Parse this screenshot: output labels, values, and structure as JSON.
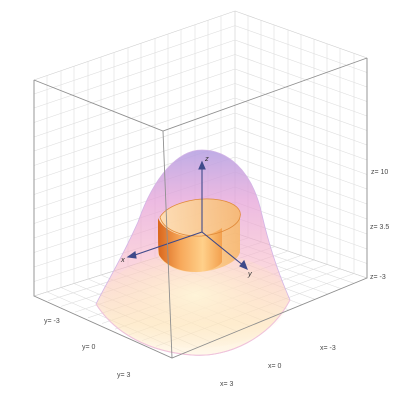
{
  "labels": {
    "z_ticks": [
      "z= 10",
      "z= 3.5",
      "z= -3"
    ],
    "x_ticks": [
      "x= -3",
      "x= 0",
      "x= 3"
    ],
    "y_ticks": [
      "y= -3",
      "y= 0",
      "y= 3"
    ],
    "axes": {
      "x": "x",
      "y": "y",
      "z": "z"
    }
  },
  "colors": {
    "box_edge": "#8a8a8a",
    "grid": "#d9d9d9",
    "surface_top": "#b39ddb",
    "surface_mid": "#f48fb1",
    "surface_low": "#ffcc80",
    "inner_band": "#ef6c00",
    "axis_arrow": "#3f4a8a"
  }
}
